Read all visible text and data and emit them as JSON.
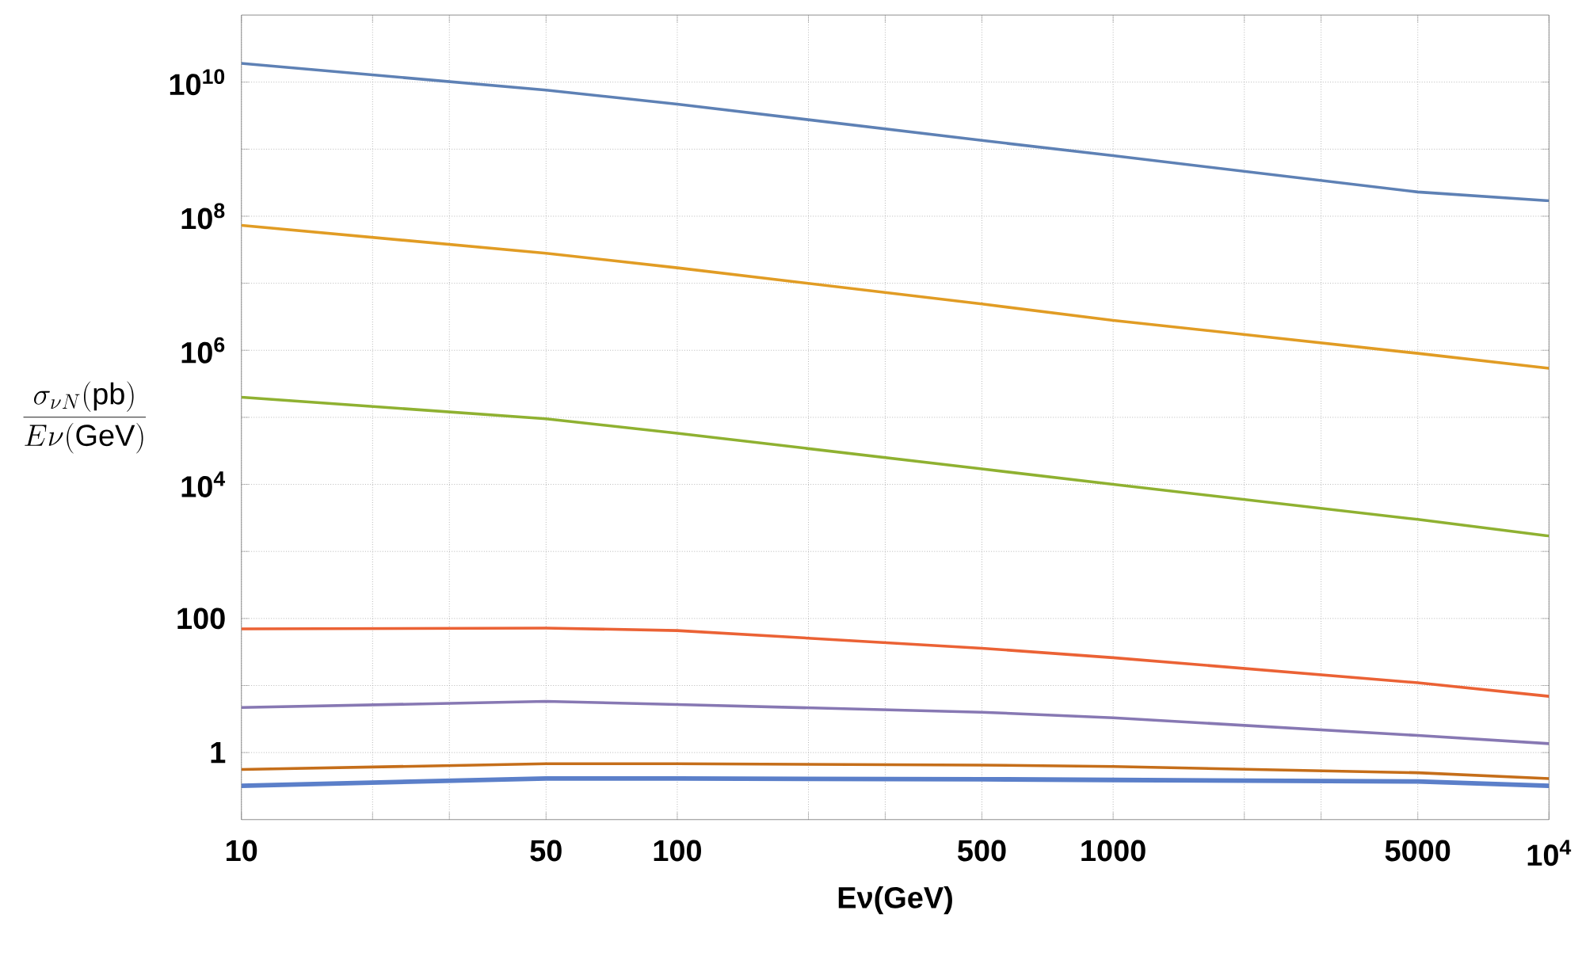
{
  "chart_data": {
    "type": "line",
    "xlabel": "Eν(GeV)",
    "ylabel": "\\frac{\\sigma_{\\nu N}\\mathrm{(pb)}}{E\\nu\\mathrm{(GeV)}}",
    "log": "xy",
    "grid": true,
    "xlim": [
      10,
      10000
    ],
    "ylim": [
      0.1,
      100000000000.0
    ],
    "xticks": [
      10,
      {
        "value": 20,
        "label": null
      },
      {
        "value": 30,
        "label": null
      },
      50,
      100,
      {
        "value": 200,
        "label": null
      },
      {
        "value": 300,
        "label": null
      },
      500,
      1000,
      {
        "value": 2000,
        "label": null
      },
      {
        "value": 3000,
        "label": null
      },
      5000,
      {
        "value": 10000,
        "label": "10$^{4}$"
      }
    ],
    "yticks": [
      1,
      {
        "value": 10,
        "label": null
      },
      100,
      {
        "value": 1000,
        "label": null
      },
      {
        "value": 10000,
        "label": "10$^{4}$"
      },
      {
        "value": 100000,
        "label": null
      },
      {
        "value": 1000000,
        "label": "10$^{6}$"
      },
      {
        "value": 10000000,
        "label": null
      },
      {
        "value": 100000000,
        "label": "10$^{8}$"
      },
      {
        "value": 1000000000,
        "label": null
      },
      {
        "value": 10000000000,
        "label": "10$^{10}$"
      }
    ],
    "x": [
      10,
      50,
      100,
      500,
      1000,
      5000,
      10000
    ],
    "series": [
      {
        "color": "#5e81b5",
        "values": [
          19000000000.0,
          7600000000.0,
          4700000000.0,
          1350000000.0,
          800000000.0,
          230000000.0,
          170000000.0
        ]
      },
      {
        "color": "#e19c24",
        "values": [
          73000000.0,
          28000000.0,
          17000000.0,
          4900000.0,
          2800000.0,
          900000.0,
          540000.0
        ]
      },
      {
        "color": "#8fb131",
        "values": [
          200000.0,
          95000.0,
          58000.0,
          17000.0,
          10000.0,
          3000.0,
          1700.0
        ]
      },
      {
        "color": "#eb6235",
        "values": [
          70,
          72,
          66,
          36,
          26,
          11,
          6.9
        ]
      },
      {
        "color": "#8778b3",
        "values": [
          4.7,
          5.8,
          5.2,
          4.0,
          3.3,
          1.8,
          1.36
        ]
      },
      {
        "color": "#c56e1a",
        "values": [
          0.56,
          0.68,
          0.68,
          0.65,
          0.62,
          0.5,
          0.41
        ]
      },
      {
        "color": "#5b7fc9",
        "values": [
          0.32,
          0.41,
          0.41,
          0.4,
          0.39,
          0.37,
          0.32
        ]
      }
    ]
  }
}
